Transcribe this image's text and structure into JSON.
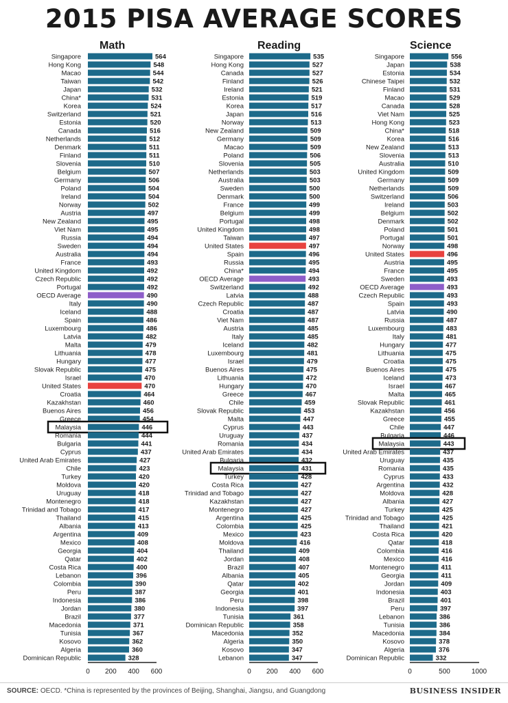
{
  "title": "2015 PISA AVERAGE SCORES",
  "colors": {
    "bar": "#1d6a8a",
    "us": "#e8423f",
    "oecd": "#8e5ec9",
    "text": "#1a1a1a"
  },
  "footer": {
    "source_label": "SOURCE:",
    "source_text": " OECD. *China is represented by the provinces of Beijing, Shanghai, Jiangsu, and Guangdong",
    "brand": "BUSINESS INSIDER"
  },
  "chart_data": [
    {
      "type": "bar",
      "title": "Math",
      "xlim": [
        0,
        600
      ],
      "ticks": [
        "0",
        "200",
        "400",
        "600"
      ],
      "highlight": "Malaysia",
      "categories": [
        "Singapore",
        "Hong Kong",
        "Macao",
        "Taiwan",
        "Japan",
        "China*",
        "Korea",
        "Switzerland",
        "Estonia",
        "Canada",
        "Netherlands",
        "Denmark",
        "Finland",
        "Slovenia",
        "Belgium",
        "Germany",
        "Poland",
        "Ireland",
        "Norway",
        "Austria",
        "New Zealand",
        "Viet Nam",
        "Russia",
        "Sweden",
        "Australia",
        "France",
        "United Kingdom",
        "Czech Republic",
        "Portugal",
        "OECD Average",
        "Italy",
        "Iceland",
        "Spain",
        "Luxembourg",
        "Latvia",
        "Malta",
        "Lithuania",
        "Hungary",
        "Slovak Republic",
        "Israel",
        "United States",
        "Croatia",
        "Kazakhstan",
        "Buenos Aires",
        "Greece",
        "Malaysia",
        "Romania",
        "Bulgaria",
        "Cyprus",
        "United Arab Emirates",
        "Chile",
        "Turkey",
        "Moldova",
        "Uruguay",
        "Montenegro",
        "Trinidad and Tobago",
        "Thailand",
        "Albania",
        "Argentina",
        "Mexico",
        "Georgia",
        "Qatar",
        "Costa Rica",
        "Lebanon",
        "Colombia",
        "Peru",
        "Indonesia",
        "Jordan",
        "Brazil",
        "Macedonia",
        "Tunisia",
        "Kosovo",
        "Algeria",
        "Dominican Republic"
      ],
      "values": [
        564,
        548,
        544,
        542,
        532,
        531,
        524,
        521,
        520,
        516,
        512,
        511,
        511,
        510,
        507,
        506,
        504,
        504,
        502,
        497,
        495,
        495,
        494,
        494,
        494,
        493,
        492,
        492,
        492,
        490,
        490,
        488,
        486,
        486,
        482,
        479,
        478,
        477,
        475,
        470,
        470,
        464,
        460,
        456,
        454,
        446,
        444,
        441,
        437,
        427,
        423,
        420,
        420,
        418,
        418,
        417,
        415,
        413,
        409,
        408,
        404,
        402,
        400,
        396,
        390,
        387,
        386,
        380,
        377,
        371,
        367,
        362,
        360,
        328
      ]
    },
    {
      "type": "bar",
      "title": "Reading",
      "xlim": [
        0,
        600
      ],
      "ticks": [
        "0",
        "200",
        "400",
        "600"
      ],
      "highlight": "Malaysia",
      "categories": [
        "Singapore",
        "Hong Kong",
        "Canada",
        "Finland",
        "Ireland",
        "Estonia",
        "Korea",
        "Japan",
        "Norway",
        "New Zealand",
        "Germany",
        "Macao",
        "Poland",
        "Slovenia",
        "Netherlands",
        "Australia",
        "Sweden",
        "Denmark",
        "France",
        "Belgium",
        "Portugal",
        "United Kingdom",
        "Taiwan",
        "United States",
        "Spain",
        "Russia",
        "China*",
        "OECD Average",
        "Switzerland",
        "Latvia",
        "Czech Republic",
        "Croatia",
        "Viet Nam",
        "Austria",
        "Italy",
        "Iceland",
        "Luxembourg",
        "Israel",
        "Buenos Aires",
        "Lithuania",
        "Hungary",
        "Greece",
        "Chile",
        "Slovak Republic",
        "Malta",
        "Cyprus",
        "Uruguay",
        "Romania",
        "United Arab Emirates",
        "Bulgaria",
        "Malaysia",
        "Turkey",
        "Costa Rica",
        "Trinidad and Tobago",
        "Kazakhstan",
        "Montenegro",
        "Argentina",
        "Colombia",
        "Mexico",
        "Moldova",
        "Thailand",
        "Jordan",
        "Brazil",
        "Albania",
        "Qatar",
        "Georgia",
        "Peru",
        "Indonesia",
        "Tunisia",
        "Dominican Republic",
        "Macedonia",
        "Algeria",
        "Kosovo",
        "Lebanon"
      ],
      "values": [
        535,
        527,
        527,
        526,
        521,
        519,
        517,
        516,
        513,
        509,
        509,
        509,
        506,
        505,
        503,
        503,
        500,
        500,
        499,
        499,
        498,
        498,
        497,
        497,
        496,
        495,
        494,
        493,
        492,
        488,
        487,
        487,
        487,
        485,
        485,
        482,
        481,
        479,
        475,
        472,
        470,
        467,
        459,
        453,
        447,
        443,
        437,
        434,
        434,
        432,
        431,
        428,
        427,
        427,
        427,
        427,
        425,
        425,
        423,
        416,
        409,
        408,
        407,
        405,
        402,
        401,
        398,
        397,
        361,
        358,
        352,
        350,
        347,
        347
      ]
    },
    {
      "type": "bar",
      "title": "Science",
      "xlim": [
        0,
        1000
      ],
      "ticks": [
        "0",
        "500",
        "1000"
      ],
      "highlight": "Malaysia",
      "categories": [
        "Singapore",
        "Japan",
        "Estonia",
        "Chinese Taipei",
        "Finland",
        "Macao",
        "Canada",
        "Viet Nam",
        "Hong Kong",
        "China*",
        "Korea",
        "New Zealand",
        "Slovenia",
        "Australia",
        "United Kingdom",
        "Germany",
        "Netherlands",
        "Switzerland",
        "Ireland",
        "Belgium",
        "Denmark",
        "Poland",
        "Portugal",
        "Norway",
        "United States",
        "Austria",
        "France",
        "Sweden",
        "OECD Average",
        "Czech Republic",
        "Spain",
        "Latvia",
        "Russia",
        "Luxembourg",
        "Italy",
        "Hungary",
        "Lithuania",
        "Croatia",
        "Buenos Aires",
        "Iceland",
        "Israel",
        "Malta",
        "Slovak Republic",
        "Kazakhstan",
        "Greece",
        "Chile",
        "Bulgaria",
        "Malaysia",
        "United Arab Emirates",
        "Uruguay",
        "Romania",
        "Cyprus",
        "Argentina",
        "Moldova",
        "Albania",
        "Turkey",
        "Trinidad and Tobago",
        "Thailand",
        "Costa Rica",
        "Qatar",
        "Colombia",
        "Mexico",
        "Montenegro",
        "Georgia",
        "Jordan",
        "Indonesia",
        "Brazil",
        "Peru",
        "Lebanon",
        "Tunisia",
        "Macedonia",
        "Kosovo",
        "Algeria",
        "Dominican Republic"
      ],
      "values": [
        556,
        538,
        534,
        532,
        531,
        529,
        528,
        525,
        523,
        518,
        516,
        513,
        513,
        510,
        509,
        509,
        509,
        506,
        503,
        502,
        502,
        501,
        501,
        498,
        496,
        495,
        495,
        493,
        493,
        493,
        493,
        490,
        487,
        483,
        481,
        477,
        475,
        475,
        475,
        473,
        467,
        465,
        461,
        456,
        455,
        447,
        446,
        443,
        437,
        435,
        435,
        433,
        432,
        428,
        427,
        425,
        425,
        421,
        420,
        418,
        416,
        416,
        411,
        411,
        409,
        403,
        401,
        397,
        386,
        386,
        384,
        378,
        376,
        332
      ]
    }
  ]
}
